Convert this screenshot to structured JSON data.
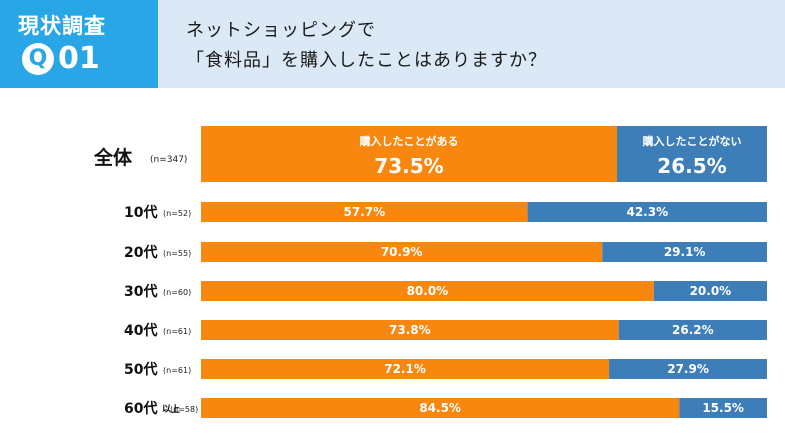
{
  "header": {
    "badge_title": "現状調査",
    "badge_q": "Q",
    "badge_number": "01",
    "question_line1": "ネットショッピングで",
    "question_line2": "「食料品」を購入したことはありますか？"
  },
  "colors": {
    "yes": "#f7870e",
    "no": "#3d7db8",
    "badge": "#29a6e5",
    "question_bg": "#dbe9f6"
  },
  "chart_data": {
    "type": "bar",
    "orientation": "horizontal",
    "stacked": true,
    "normalized_percent": true,
    "xlim": [
      0,
      100
    ],
    "categories": [
      {
        "label": "全体",
        "suffix": "",
        "n": "(n=347)"
      },
      {
        "label": "10代",
        "suffix": "",
        "n": "(n=52)"
      },
      {
        "label": "20代",
        "suffix": "",
        "n": "(n=55)"
      },
      {
        "label": "30代",
        "suffix": "",
        "n": "(n=60)"
      },
      {
        "label": "40代",
        "suffix": "",
        "n": "(n=61)"
      },
      {
        "label": "50代",
        "suffix": "",
        "n": "(n=61)"
      },
      {
        "label": "60代",
        "suffix": "以上",
        "n": "(n=58)"
      }
    ],
    "series": [
      {
        "name": "購入したことがある",
        "values": [
          73.5,
          57.7,
          70.9,
          80.0,
          73.8,
          72.1,
          84.5
        ]
      },
      {
        "name": "購入したことがない",
        "values": [
          26.5,
          42.3,
          29.1,
          20.0,
          26.2,
          27.9,
          15.5
        ]
      }
    ]
  }
}
